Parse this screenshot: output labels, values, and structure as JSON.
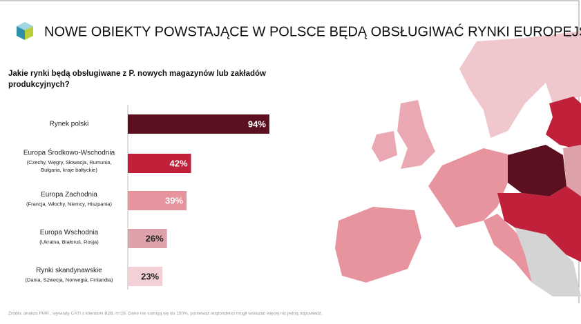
{
  "chart_data": {
    "type": "bar",
    "orientation": "horizontal",
    "title": "NOWE OBIEKTY POWSTAJĄCE W POLSCE BĘDĄ OBSŁUGIWAĆ RYNKI EUROPEJSKIE",
    "subtitle": [
      "Jakie rynki będą obsługiwane z P. nowych magazynów lub zakładów",
      "produkcyjnych?"
    ],
    "categories": [
      "Rynek polski",
      "Europa Środkowo-Wschodnia",
      "Europa Zachodnia",
      "Europa Wschodnia",
      "Rynki skandynawskie"
    ],
    "category_details": [
      [],
      [
        "(Czechy, Węgry, Słowacja, Rumunia,",
        "Bułgaria, kraje bałtyckie)"
      ],
      [
        "(Francja, Włochy, Niemcy, Hiszpania)"
      ],
      [
        "(Ukraina, Białoruś, Rosja)"
      ],
      [
        "(Dania, Szwecja, Norwegia, Finlandia)"
      ]
    ],
    "values": [
      94,
      42,
      39,
      26,
      23
    ],
    "value_labels": [
      "94%",
      "42%",
      "39%",
      "26%",
      "23%"
    ],
    "colors": [
      "#5c0f1e",
      "#c0203a",
      "#e8949f",
      "#dca1a9",
      "#f2d0d5"
    ],
    "label_colors": [
      "#ffffff",
      "#ffffff",
      "#ffffff",
      "#222222",
      "#222222"
    ],
    "xlim": [
      0,
      100
    ],
    "source": "Źródło: analiza PMR , wywiady CATI z klientami B2B, n=29, Dane nie sumują się do 100%, ponieważ respondenci mogli wskazać więcej niż jedną odpowiedź."
  }
}
